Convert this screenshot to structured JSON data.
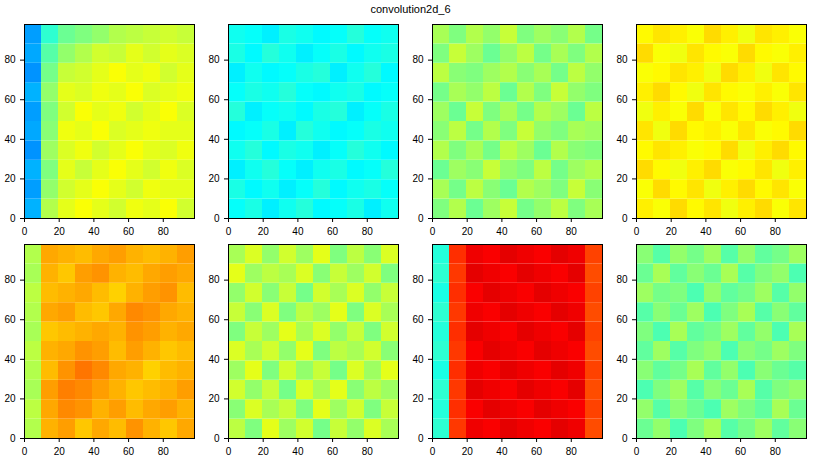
{
  "chart_data": {
    "type": "heatmap",
    "title": "convolution2d_6",
    "xlim": [
      0,
      98
    ],
    "ylim": [
      0,
      98
    ],
    "xticks": [
      0,
      20,
      40,
      60,
      80
    ],
    "yticks": [
      0,
      20,
      40,
      60,
      80
    ],
    "clim": [
      0,
      1
    ],
    "panels": [
      {
        "cells": [
          [
            0.3,
            0.55,
            0.6,
            0.62,
            0.6,
            0.58,
            0.61,
            0.6,
            0.62,
            0.58
          ],
          [
            0.28,
            0.52,
            0.58,
            0.6,
            0.62,
            0.6,
            0.58,
            0.61,
            0.6,
            0.6
          ],
          [
            0.3,
            0.5,
            0.6,
            0.57,
            0.6,
            0.62,
            0.6,
            0.58,
            0.61,
            0.59
          ],
          [
            0.27,
            0.53,
            0.59,
            0.61,
            0.58,
            0.6,
            0.62,
            0.6,
            0.59,
            0.61
          ],
          [
            0.29,
            0.51,
            0.61,
            0.6,
            0.62,
            0.59,
            0.6,
            0.61,
            0.6,
            0.6
          ],
          [
            0.28,
            0.5,
            0.58,
            0.62,
            0.6,
            0.61,
            0.58,
            0.6,
            0.62,
            0.59
          ],
          [
            0.3,
            0.52,
            0.6,
            0.59,
            0.61,
            0.6,
            0.62,
            0.59,
            0.6,
            0.61
          ],
          [
            0.27,
            0.49,
            0.57,
            0.58,
            0.6,
            0.62,
            0.6,
            0.61,
            0.58,
            0.6
          ],
          [
            0.29,
            0.46,
            0.52,
            0.55,
            0.58,
            0.57,
            0.6,
            0.58,
            0.6,
            0.59
          ],
          [
            0.28,
            0.42,
            0.48,
            0.5,
            0.52,
            0.55,
            0.56,
            0.57,
            0.58,
            0.57
          ]
        ]
      },
      {
        "cells": [
          [
            0.38,
            0.4,
            0.36,
            0.39,
            0.41,
            0.37,
            0.38,
            0.4,
            0.36,
            0.39
          ],
          [
            0.4,
            0.37,
            0.39,
            0.36,
            0.38,
            0.41,
            0.37,
            0.39,
            0.4,
            0.38
          ],
          [
            0.36,
            0.39,
            0.41,
            0.38,
            0.36,
            0.39,
            0.4,
            0.37,
            0.38,
            0.41
          ],
          [
            0.39,
            0.41,
            0.37,
            0.4,
            0.39,
            0.36,
            0.38,
            0.41,
            0.39,
            0.37
          ],
          [
            0.37,
            0.38,
            0.4,
            0.36,
            0.41,
            0.39,
            0.37,
            0.38,
            0.4,
            0.39
          ],
          [
            0.41,
            0.36,
            0.38,
            0.39,
            0.37,
            0.4,
            0.41,
            0.36,
            0.38,
            0.4
          ],
          [
            0.38,
            0.4,
            0.39,
            0.41,
            0.38,
            0.37,
            0.39,
            0.4,
            0.37,
            0.38
          ],
          [
            0.36,
            0.39,
            0.37,
            0.38,
            0.4,
            0.41,
            0.36,
            0.39,
            0.41,
            0.37
          ],
          [
            0.4,
            0.37,
            0.41,
            0.39,
            0.36,
            0.38,
            0.4,
            0.37,
            0.39,
            0.4
          ],
          [
            0.39,
            0.38,
            0.36,
            0.4,
            0.39,
            0.37,
            0.38,
            0.41,
            0.38,
            0.39
          ]
        ]
      },
      {
        "cells": [
          [
            0.5,
            0.55,
            0.48,
            0.53,
            0.57,
            0.49,
            0.52,
            0.56,
            0.5,
            0.54
          ],
          [
            0.54,
            0.49,
            0.56,
            0.51,
            0.48,
            0.55,
            0.53,
            0.5,
            0.57,
            0.51
          ],
          [
            0.48,
            0.53,
            0.51,
            0.57,
            0.52,
            0.5,
            0.56,
            0.49,
            0.53,
            0.55
          ],
          [
            0.55,
            0.5,
            0.54,
            0.49,
            0.56,
            0.53,
            0.48,
            0.55,
            0.51,
            0.5
          ],
          [
            0.51,
            0.56,
            0.49,
            0.55,
            0.5,
            0.57,
            0.52,
            0.5,
            0.54,
            0.53
          ],
          [
            0.53,
            0.48,
            0.57,
            0.5,
            0.54,
            0.49,
            0.55,
            0.53,
            0.48,
            0.56
          ],
          [
            0.49,
            0.54,
            0.52,
            0.56,
            0.48,
            0.55,
            0.5,
            0.57,
            0.52,
            0.5
          ],
          [
            0.56,
            0.51,
            0.5,
            0.53,
            0.55,
            0.51,
            0.54,
            0.49,
            0.56,
            0.52
          ],
          [
            0.5,
            0.57,
            0.53,
            0.48,
            0.52,
            0.56,
            0.49,
            0.54,
            0.5,
            0.55
          ],
          [
            0.54,
            0.5,
            0.55,
            0.52,
            0.57,
            0.5,
            0.53,
            0.51,
            0.55,
            0.49
          ]
        ]
      },
      {
        "cells": [
          [
            0.64,
            0.62,
            0.66,
            0.63,
            0.65,
            0.61,
            0.64,
            0.66,
            0.62,
            0.65
          ],
          [
            0.62,
            0.66,
            0.63,
            0.65,
            0.61,
            0.64,
            0.66,
            0.63,
            0.65,
            0.62
          ],
          [
            0.66,
            0.63,
            0.61,
            0.64,
            0.66,
            0.62,
            0.63,
            0.65,
            0.61,
            0.64
          ],
          [
            0.63,
            0.65,
            0.64,
            0.62,
            0.63,
            0.66,
            0.61,
            0.64,
            0.66,
            0.63
          ],
          [
            0.65,
            0.61,
            0.66,
            0.63,
            0.64,
            0.62,
            0.65,
            0.62,
            0.63,
            0.66
          ],
          [
            0.61,
            0.64,
            0.62,
            0.66,
            0.62,
            0.65,
            0.63,
            0.66,
            0.64,
            0.61
          ],
          [
            0.64,
            0.66,
            0.63,
            0.61,
            0.65,
            0.63,
            0.62,
            0.64,
            0.62,
            0.65
          ],
          [
            0.62,
            0.63,
            0.65,
            0.64,
            0.61,
            0.66,
            0.64,
            0.61,
            0.65,
            0.63
          ],
          [
            0.66,
            0.62,
            0.61,
            0.65,
            0.63,
            0.62,
            0.66,
            0.63,
            0.62,
            0.64
          ],
          [
            0.63,
            0.65,
            0.64,
            0.62,
            0.66,
            0.64,
            0.61,
            0.65,
            0.64,
            0.62
          ]
        ]
      },
      {
        "cells": [
          [
            0.55,
            0.7,
            0.72,
            0.68,
            0.71,
            0.69,
            0.73,
            0.7,
            0.68,
            0.71
          ],
          [
            0.56,
            0.71,
            0.74,
            0.73,
            0.7,
            0.72,
            0.69,
            0.71,
            0.72,
            0.7
          ],
          [
            0.54,
            0.72,
            0.75,
            0.74,
            0.72,
            0.7,
            0.68,
            0.69,
            0.7,
            0.72
          ],
          [
            0.55,
            0.69,
            0.73,
            0.76,
            0.74,
            0.71,
            0.7,
            0.67,
            0.69,
            0.7
          ],
          [
            0.56,
            0.7,
            0.71,
            0.73,
            0.72,
            0.69,
            0.72,
            0.7,
            0.68,
            0.69
          ],
          [
            0.54,
            0.68,
            0.69,
            0.7,
            0.71,
            0.7,
            0.73,
            0.72,
            0.7,
            0.71
          ],
          [
            0.55,
            0.71,
            0.72,
            0.69,
            0.68,
            0.71,
            0.74,
            0.73,
            0.71,
            0.7
          ],
          [
            0.56,
            0.69,
            0.7,
            0.71,
            0.69,
            0.67,
            0.7,
            0.72,
            0.73,
            0.69
          ],
          [
            0.54,
            0.7,
            0.68,
            0.72,
            0.73,
            0.7,
            0.69,
            0.71,
            0.72,
            0.71
          ],
          [
            0.55,
            0.71,
            0.7,
            0.69,
            0.71,
            0.72,
            0.7,
            0.69,
            0.7,
            0.72
          ]
        ]
      },
      {
        "cells": [
          [
            0.56,
            0.5,
            0.6,
            0.53,
            0.58,
            0.49,
            0.57,
            0.52,
            0.59,
            0.54
          ],
          [
            0.51,
            0.59,
            0.54,
            0.57,
            0.5,
            0.6,
            0.53,
            0.58,
            0.5,
            0.57
          ],
          [
            0.58,
            0.52,
            0.57,
            0.49,
            0.59,
            0.54,
            0.6,
            0.51,
            0.56,
            0.53
          ],
          [
            0.53,
            0.6,
            0.5,
            0.58,
            0.52,
            0.57,
            0.49,
            0.59,
            0.53,
            0.6
          ],
          [
            0.59,
            0.54,
            0.58,
            0.52,
            0.6,
            0.5,
            0.56,
            0.54,
            0.58,
            0.51
          ],
          [
            0.5,
            0.57,
            0.53,
            0.6,
            0.54,
            0.59,
            0.52,
            0.57,
            0.5,
            0.58
          ],
          [
            0.57,
            0.51,
            0.59,
            0.5,
            0.56,
            0.53,
            0.6,
            0.5,
            0.59,
            0.54
          ],
          [
            0.52,
            0.58,
            0.51,
            0.57,
            0.49,
            0.58,
            0.54,
            0.59,
            0.52,
            0.57
          ],
          [
            0.6,
            0.53,
            0.56,
            0.54,
            0.59,
            0.51,
            0.57,
            0.53,
            0.58,
            0.5
          ],
          [
            0.54,
            0.59,
            0.52,
            0.58,
            0.53,
            0.6,
            0.5,
            0.56,
            0.51,
            0.59
          ]
        ]
      },
      {
        "cells": [
          [
            0.42,
            0.82,
            0.89,
            0.88,
            0.9,
            0.89,
            0.88,
            0.9,
            0.89,
            0.8
          ],
          [
            0.41,
            0.83,
            0.88,
            0.9,
            0.89,
            0.88,
            0.9,
            0.89,
            0.88,
            0.81
          ],
          [
            0.42,
            0.82,
            0.9,
            0.89,
            0.88,
            0.9,
            0.89,
            0.88,
            0.9,
            0.8
          ],
          [
            0.4,
            0.83,
            0.89,
            0.88,
            0.9,
            0.89,
            0.88,
            0.9,
            0.89,
            0.81
          ],
          [
            0.42,
            0.82,
            0.88,
            0.9,
            0.89,
            0.88,
            0.9,
            0.89,
            0.88,
            0.8
          ],
          [
            0.41,
            0.83,
            0.9,
            0.89,
            0.88,
            0.9,
            0.89,
            0.88,
            0.9,
            0.81
          ],
          [
            0.42,
            0.82,
            0.89,
            0.88,
            0.9,
            0.89,
            0.88,
            0.9,
            0.89,
            0.8
          ],
          [
            0.4,
            0.83,
            0.88,
            0.9,
            0.89,
            0.88,
            0.9,
            0.89,
            0.88,
            0.81
          ],
          [
            0.42,
            0.82,
            0.9,
            0.89,
            0.88,
            0.9,
            0.89,
            0.88,
            0.9,
            0.8
          ],
          [
            0.41,
            0.83,
            0.89,
            0.88,
            0.9,
            0.89,
            0.88,
            0.9,
            0.89,
            0.81
          ]
        ]
      },
      {
        "cells": [
          [
            0.48,
            0.52,
            0.45,
            0.5,
            0.54,
            0.46,
            0.49,
            0.53,
            0.47,
            0.51
          ],
          [
            0.52,
            0.46,
            0.51,
            0.48,
            0.45,
            0.53,
            0.5,
            0.47,
            0.54,
            0.48
          ],
          [
            0.45,
            0.5,
            0.53,
            0.46,
            0.51,
            0.48,
            0.54,
            0.46,
            0.5,
            0.52
          ],
          [
            0.51,
            0.47,
            0.49,
            0.54,
            0.47,
            0.52,
            0.45,
            0.51,
            0.48,
            0.46
          ],
          [
            0.47,
            0.53,
            0.46,
            0.5,
            0.52,
            0.45,
            0.51,
            0.49,
            0.53,
            0.5
          ],
          [
            0.5,
            0.45,
            0.54,
            0.47,
            0.49,
            0.53,
            0.47,
            0.52,
            0.45,
            0.54
          ],
          [
            0.46,
            0.51,
            0.48,
            0.53,
            0.45,
            0.5,
            0.54,
            0.46,
            0.51,
            0.47
          ],
          [
            0.53,
            0.49,
            0.5,
            0.45,
            0.52,
            0.47,
            0.49,
            0.53,
            0.46,
            0.52
          ],
          [
            0.48,
            0.54,
            0.47,
            0.51,
            0.48,
            0.54,
            0.46,
            0.5,
            0.52,
            0.45
          ],
          [
            0.51,
            0.46,
            0.52,
            0.49,
            0.53,
            0.46,
            0.52,
            0.47,
            0.49,
            0.53
          ]
        ]
      }
    ]
  }
}
